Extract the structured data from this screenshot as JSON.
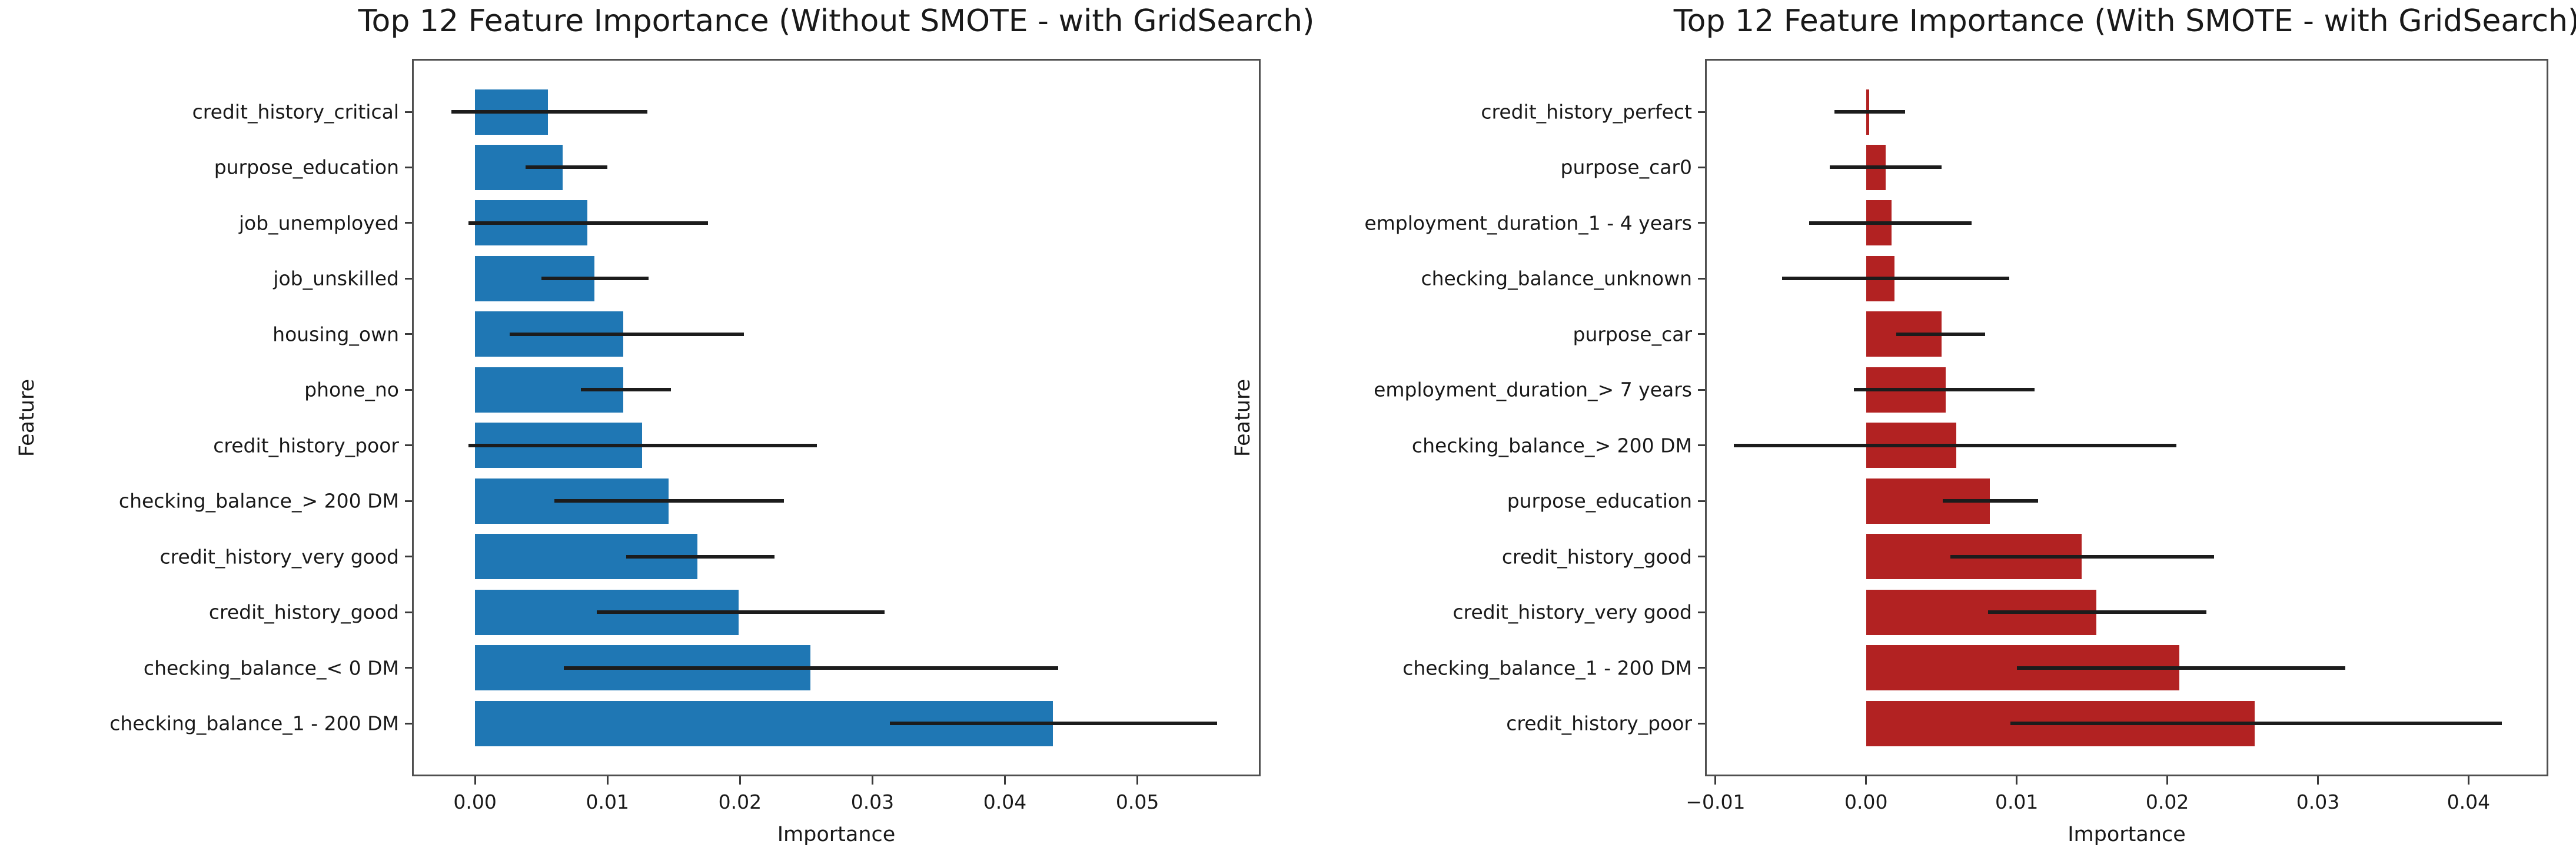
{
  "figure": {
    "background": "#ffffff",
    "description": "Two horizontal bar charts of feature importances with error bars, side by side"
  },
  "chart_data": [
    {
      "type": "bar",
      "orientation": "horizontal",
      "title": "Top 12 Feature Importance (Without SMOTE - with GridSearch)",
      "xlabel": "Importance",
      "ylabel": "Feature",
      "bar_color": "#1f77b4",
      "error_color": "#1c1c1c",
      "grid": false,
      "legend": null,
      "xlim": [
        -0.00476,
        0.0593
      ],
      "xticks": [
        {
          "value": 0.0,
          "label": "0.00"
        },
        {
          "value": 0.01,
          "label": "0.01"
        },
        {
          "value": 0.02,
          "label": "0.02"
        },
        {
          "value": 0.03,
          "label": "0.03"
        },
        {
          "value": 0.04,
          "label": "0.04"
        },
        {
          "value": 0.05,
          "label": "0.05"
        }
      ],
      "features": [
        {
          "label": "credit_history_critical",
          "value": 0.0055,
          "err_low": -0.0018,
          "err_high": 0.013
        },
        {
          "label": "purpose_education",
          "value": 0.0066,
          "err_low": 0.0038,
          "err_high": 0.01
        },
        {
          "label": "job_unemployed",
          "value": 0.0085,
          "err_low": -0.0005,
          "err_high": 0.0176
        },
        {
          "label": "job_unskilled",
          "value": 0.009,
          "err_low": 0.005,
          "err_high": 0.0131
        },
        {
          "label": "housing_own",
          "value": 0.0112,
          "err_low": 0.0026,
          "err_high": 0.0203
        },
        {
          "label": "phone_no",
          "value": 0.0112,
          "err_low": 0.008,
          "err_high": 0.0148
        },
        {
          "label": "credit_history_poor",
          "value": 0.0126,
          "err_low": -0.0005,
          "err_high": 0.0258
        },
        {
          "label": "checking_balance_> 200 DM",
          "value": 0.0146,
          "err_low": 0.006,
          "err_high": 0.0233
        },
        {
          "label": "credit_history_very good",
          "value": 0.0168,
          "err_low": 0.0114,
          "err_high": 0.0226
        },
        {
          "label": "credit_history_good",
          "value": 0.0199,
          "err_low": 0.0092,
          "err_high": 0.0309
        },
        {
          "label": "checking_balance_< 0 DM",
          "value": 0.0253,
          "err_low": 0.0067,
          "err_high": 0.044
        },
        {
          "label": "checking_balance_1 - 200 DM",
          "value": 0.0436,
          "err_low": 0.0313,
          "err_high": 0.056
        }
      ]
    },
    {
      "type": "bar",
      "orientation": "horizontal",
      "title": "Top 12 Feature Importance (With SMOTE - with GridSearch)",
      "xlabel": "Importance",
      "ylabel": "Feature",
      "bar_color": "#b22222",
      "error_color": "#1c1c1c",
      "grid": false,
      "legend": null,
      "xlim": [
        -0.0107,
        0.0453
      ],
      "xticks": [
        {
          "value": -0.01,
          "label": "−0.01"
        },
        {
          "value": 0.0,
          "label": "0.00"
        },
        {
          "value": 0.01,
          "label": "0.01"
        },
        {
          "value": 0.02,
          "label": "0.02"
        },
        {
          "value": 0.03,
          "label": "0.03"
        },
        {
          "value": 0.04,
          "label": "0.04"
        }
      ],
      "features": [
        {
          "label": "credit_history_perfect",
          "value": 0.0002,
          "err_low": -0.0021,
          "err_high": 0.0026
        },
        {
          "label": "purpose_car0",
          "value": 0.0013,
          "err_low": -0.0024,
          "err_high": 0.005
        },
        {
          "label": "employment_duration_1 - 4 years",
          "value": 0.0017,
          "err_low": -0.0038,
          "err_high": 0.007
        },
        {
          "label": "checking_balance_unknown",
          "value": 0.0019,
          "err_low": -0.0056,
          "err_high": 0.0095
        },
        {
          "label": "purpose_car",
          "value": 0.005,
          "err_low": 0.002,
          "err_high": 0.0079
        },
        {
          "label": "employment_duration_> 7 years",
          "value": 0.0053,
          "err_low": -0.0008,
          "err_high": 0.0112
        },
        {
          "label": "checking_balance_> 200 DM",
          "value": 0.006,
          "err_low": -0.0088,
          "err_high": 0.0206
        },
        {
          "label": "purpose_education",
          "value": 0.0082,
          "err_low": 0.0051,
          "err_high": 0.0114
        },
        {
          "label": "credit_history_good",
          "value": 0.0143,
          "err_low": 0.0056,
          "err_high": 0.0231
        },
        {
          "label": "credit_history_very good",
          "value": 0.0153,
          "err_low": 0.0081,
          "err_high": 0.0226
        },
        {
          "label": "checking_balance_1 - 200 DM",
          "value": 0.0208,
          "err_low": 0.01,
          "err_high": 0.0318
        },
        {
          "label": "credit_history_poor",
          "value": 0.0258,
          "err_low": 0.0096,
          "err_high": 0.0422
        }
      ]
    }
  ]
}
